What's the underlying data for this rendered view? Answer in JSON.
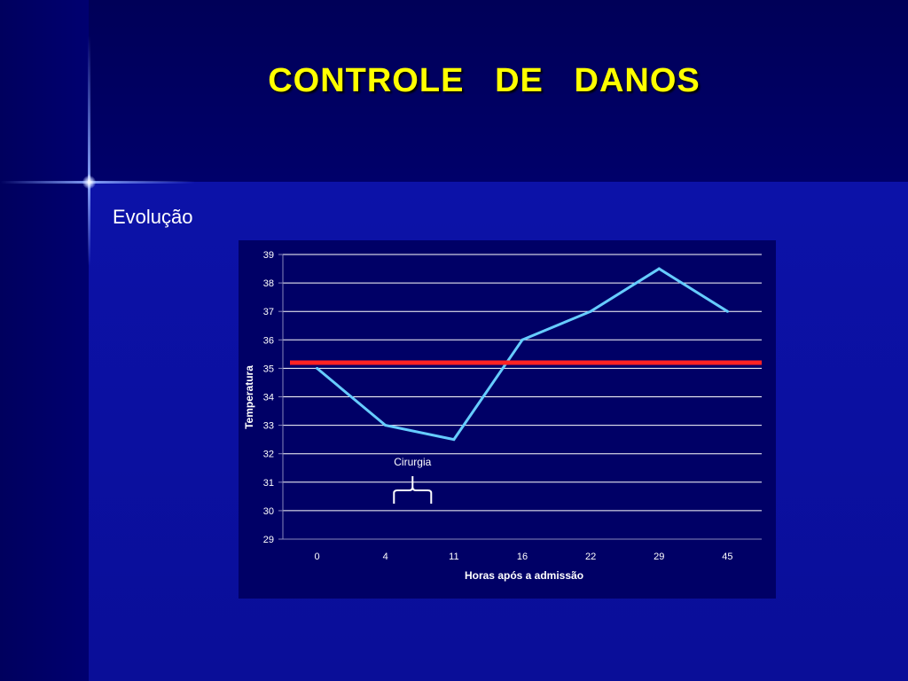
{
  "slide": {
    "title": "CONTROLE   DE   DANOS",
    "subtitle": "Evolução"
  },
  "colors": {
    "background": "#0a0a8c",
    "title": "#ffff00",
    "plot_background": "#000066",
    "series_line": "#66ccff",
    "reference_line": "#ff2222"
  },
  "chart_data": {
    "type": "line",
    "title": "",
    "xlabel": "Horas após a admissão",
    "ylabel": "Temperatura",
    "categories": [
      "0",
      "4",
      "11",
      "16",
      "22",
      "29",
      "45"
    ],
    "series": [
      {
        "values": [
          35,
          33,
          32.5,
          36,
          37,
          38.5,
          37
        ]
      }
    ],
    "reference_line": {
      "value": 35.2
    },
    "ylim": [
      29,
      39
    ],
    "yticks": [
      29,
      30,
      31,
      32,
      33,
      34,
      35,
      36,
      37,
      38,
      39
    ],
    "grid": true,
    "annotations": [
      {
        "text": "Cirurgia",
        "spans": [
          "4",
          "11"
        ]
      }
    ]
  }
}
